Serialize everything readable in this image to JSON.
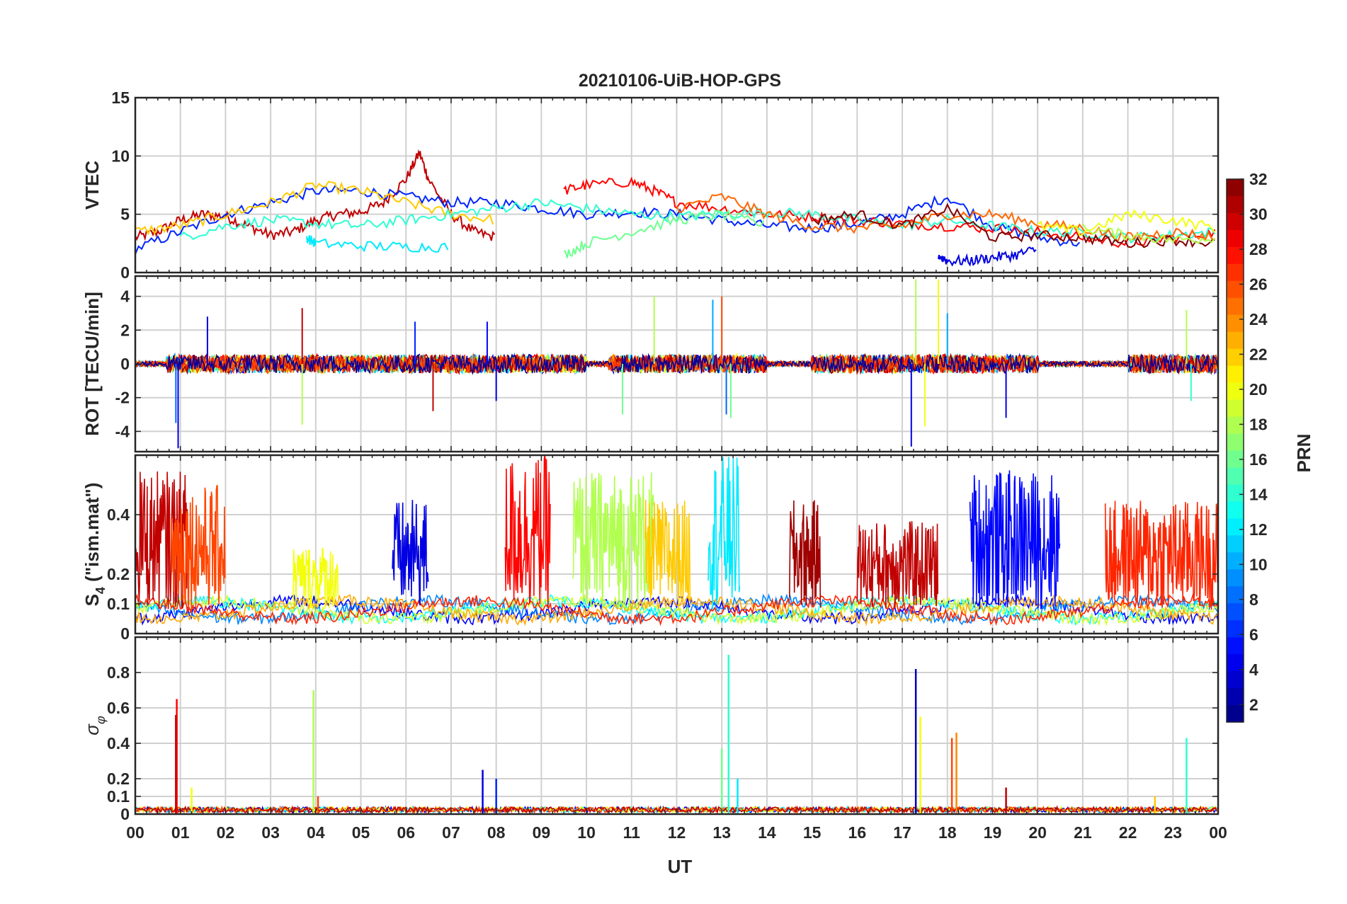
{
  "chart_data": {
    "type": "line",
    "title": "20210106-UiB-HOP-GPS",
    "xlabel": "UT",
    "x_ticks": [
      "00",
      "01",
      "02",
      "03",
      "04",
      "05",
      "06",
      "07",
      "08",
      "09",
      "10",
      "11",
      "12",
      "13",
      "14",
      "15",
      "16",
      "17",
      "18",
      "19",
      "20",
      "21",
      "22",
      "23",
      "00"
    ],
    "xlim": [
      0,
      24
    ],
    "grid": true,
    "colorbar": {
      "label": "PRN",
      "ticks": [
        "32",
        "30",
        "28",
        "26",
        "24",
        "22",
        "20",
        "18",
        "16",
        "14",
        "12",
        "10",
        "8",
        "6",
        "4",
        "2"
      ],
      "range": [
        1,
        32
      ],
      "colormap": "jet"
    },
    "panels": [
      {
        "ylabel": "VTEC",
        "ylim": [
          0,
          15
        ],
        "y_ticks": [
          "0",
          "5",
          "10",
          "15"
        ],
        "kind": "tec",
        "series": [
          {
            "prn": 30,
            "x": [
              0,
              0.5,
              1,
              1.5,
              2,
              2.5,
              3,
              3.5,
              4,
              4.5,
              5,
              5.5,
              6,
              6.3,
              6.5,
              7,
              7.5,
              8
            ],
            "y": [
              3,
              3.5,
              4.5,
              5,
              4.8,
              4,
              3.2,
              3.5,
              4.5,
              5,
              5.2,
              6,
              8,
              10.3,
              8,
              5,
              3.5,
              3
            ]
          },
          {
            "prn": 6,
            "x": [
              0,
              1,
              2,
              3,
              4,
              5,
              6,
              7,
              8,
              9,
              10,
              11,
              12,
              13,
              14,
              15,
              16,
              17,
              18,
              19,
              20,
              21
            ],
            "y": [
              2,
              3.5,
              5,
              6,
              7,
              7,
              6.5,
              6,
              6,
              5.5,
              5,
              5.2,
              5,
              4.5,
              4,
              3.8,
              4.2,
              5,
              6.5,
              4,
              3,
              2.5
            ]
          },
          {
            "prn": 22,
            "x": [
              0,
              1,
              2,
              3,
              4,
              5,
              6,
              7,
              8
            ],
            "y": [
              3.5,
              4,
              5,
              6,
              7.5,
              7,
              6,
              5,
              4.5
            ]
          },
          {
            "prn": 28,
            "x": [
              9.5,
              10,
              11,
              11.5,
              12,
              13,
              14,
              15,
              16,
              17,
              18,
              19,
              20,
              21,
              22,
              23,
              24
            ],
            "y": [
              7,
              7.5,
              7.8,
              7,
              6,
              5.5,
              5,
              4.8,
              4.5,
              4.2,
              4,
              3.8,
              3.5,
              3,
              2.5,
              3,
              3.5
            ]
          },
          {
            "prn": 14,
            "x": [
              1,
              2,
              3,
              4,
              5,
              6,
              7,
              8,
              9,
              10,
              11,
              12,
              13,
              14,
              15,
              16,
              17,
              18,
              19,
              20,
              21,
              22,
              23,
              24
            ],
            "y": [
              3,
              4,
              4.5,
              4.2,
              4,
              4.5,
              5,
              5.5,
              6,
              5.5,
              5,
              4.8,
              5,
              5.2,
              5,
              4.5,
              4,
              4.5,
              4,
              3.5,
              3.5,
              3,
              3.2,
              3.5
            ]
          },
          {
            "prn": 12,
            "x": [
              3.8,
              4,
              5,
              6,
              7
            ],
            "y": [
              3,
              2.5,
              2.3,
              2.2,
              2.2
            ]
          },
          {
            "prn": 16,
            "x": [
              9.5,
              10,
              11,
              12,
              13,
              14
            ],
            "y": [
              1.5,
              2.5,
              3.5,
              4.5,
              5,
              4
            ]
          },
          {
            "prn": 4,
            "x": [
              17.8,
              18,
              18.5,
              19,
              19.5,
              20
            ],
            "y": [
              1.5,
              1,
              1,
              1.3,
              1.5,
              2
            ]
          },
          {
            "prn": 25,
            "x": [
              12,
              13,
              14,
              15,
              16,
              17,
              18,
              19,
              20,
              21,
              22,
              23,
              24
            ],
            "y": [
              5.5,
              6.5,
              5,
              4,
              3.8,
              4,
              5,
              5,
              4.2,
              3.8,
              3,
              3.5,
              3
            ]
          },
          {
            "prn": 32,
            "x": [
              15,
              16,
              17,
              18,
              19,
              20,
              21,
              22,
              23,
              24
            ],
            "y": [
              4.5,
              5,
              4,
              5.5,
              3,
              3.2,
              3,
              2.5,
              2.8,
              2.5
            ]
          },
          {
            "prn": 20,
            "x": [
              20,
              21,
              22,
              23,
              24
            ],
            "y": [
              4,
              3.5,
              5,
              4.5,
              3.8
            ]
          },
          {
            "prn": 18,
            "x": [
              21,
              22,
              23,
              24
            ],
            "y": [
              3.8,
              3.2,
              2.8,
              3
            ]
          }
        ]
      },
      {
        "ylabel": "ROT [TECU/min]",
        "ylim": [
          -5.2,
          5.2
        ],
        "y_ticks": [
          "-4",
          "-2",
          "0",
          "2",
          "4"
        ],
        "kind": "rot",
        "spikes": [
          {
            "x": 0.9,
            "y": -3.5,
            "prn": 8
          },
          {
            "x": 0.95,
            "y": -5,
            "prn": 4
          },
          {
            "x": 1.6,
            "y": 2.8,
            "prn": 4
          },
          {
            "x": 3.7,
            "y": 3.3,
            "prn": 30
          },
          {
            "x": 3.7,
            "y": -3.6,
            "prn": 18
          },
          {
            "x": 6.2,
            "y": 2.5,
            "prn": 6
          },
          {
            "x": 6.6,
            "y": -2.8,
            "prn": 30
          },
          {
            "x": 7.8,
            "y": 2.5,
            "prn": 5
          },
          {
            "x": 8.0,
            "y": -2.2,
            "prn": 4
          },
          {
            "x": 10.8,
            "y": -3,
            "prn": 16
          },
          {
            "x": 11.5,
            "y": 4,
            "prn": 18
          },
          {
            "x": 12.8,
            "y": 3.8,
            "prn": 10
          },
          {
            "x": 13.0,
            "y": 4,
            "prn": 26
          },
          {
            "x": 13.1,
            "y": -3,
            "prn": 8
          },
          {
            "x": 13.2,
            "y": -3.2,
            "prn": 16
          },
          {
            "x": 17.2,
            "y": -4.9,
            "prn": 4
          },
          {
            "x": 17.3,
            "y": 5,
            "prn": 18
          },
          {
            "x": 17.5,
            "y": -3.7,
            "prn": 20
          },
          {
            "x": 17.8,
            "y": 5,
            "prn": 20
          },
          {
            "x": 18.0,
            "y": 3,
            "prn": 10
          },
          {
            "x": 19.3,
            "y": -3.2,
            "prn": 4
          },
          {
            "x": 23.3,
            "y": 3.2,
            "prn": 18
          },
          {
            "x": 23.4,
            "y": -2.2,
            "prn": 14
          }
        ]
      },
      {
        "ylabel": "S4 (\"ism.mat\")",
        "ylabel_main": "S",
        "ylabel_sub": "4",
        "ylabel_rest": " (\"ism.mat\")",
        "ylim": [
          0,
          0.6
        ],
        "y_ticks": [
          "0",
          "0.1",
          "0.2",
          "0.4"
        ],
        "kind": "s4",
        "bursts": [
          {
            "x0": 0,
            "x1": 1.2,
            "peak": 0.55,
            "prn": 30
          },
          {
            "x0": 0.8,
            "x1": 2,
            "peak": 0.5,
            "prn": 26
          },
          {
            "x0": 3.5,
            "x1": 4.5,
            "peak": 0.3,
            "prn": 20
          },
          {
            "x0": 5.7,
            "x1": 6.5,
            "peak": 0.45,
            "prn": 4
          },
          {
            "x0": 8.2,
            "x1": 9.2,
            "peak": 0.6,
            "prn": 28
          },
          {
            "x0": 9.7,
            "x1": 11.5,
            "peak": 0.55,
            "prn": 18
          },
          {
            "x0": 11.3,
            "x1": 12.3,
            "peak": 0.45,
            "prn": 22
          },
          {
            "x0": 12.7,
            "x1": 13.4,
            "peak": 0.6,
            "prn": 12
          },
          {
            "x0": 14.5,
            "x1": 15.2,
            "peak": 0.45,
            "prn": 31
          },
          {
            "x0": 16,
            "x1": 17.8,
            "peak": 0.38,
            "prn": 30
          },
          {
            "x0": 18.5,
            "x1": 20.5,
            "peak": 0.55,
            "prn": 5
          },
          {
            "x0": 21.5,
            "x1": 24,
            "peak": 0.45,
            "prn": 27
          }
        ]
      },
      {
        "ylabel": "σ φ",
        "ylabel_main": "σ",
        "ylabel_sub": "φ",
        "ylim": [
          0,
          1
        ],
        "y_ticks": [
          "0",
          "0.1",
          "0.2",
          "0.4",
          "0.6",
          "0.8"
        ],
        "kind": "sigma",
        "spikes": [
          {
            "x": 0.92,
            "y": 0.65,
            "prn": 28
          },
          {
            "x": 0.9,
            "y": 0.56,
            "prn": 30
          },
          {
            "x": 1.25,
            "y": 0.15,
            "prn": 20
          },
          {
            "x": 3.95,
            "y": 0.7,
            "prn": 18
          },
          {
            "x": 4.05,
            "y": 0.1,
            "prn": 26
          },
          {
            "x": 7.7,
            "y": 0.25,
            "prn": 4
          },
          {
            "x": 8.0,
            "y": 0.2,
            "prn": 6
          },
          {
            "x": 13.0,
            "y": 0.37,
            "prn": 16
          },
          {
            "x": 13.15,
            "y": 0.9,
            "prn": 14
          },
          {
            "x": 13.35,
            "y": 0.2,
            "prn": 12
          },
          {
            "x": 17.3,
            "y": 0.82,
            "prn": 3
          },
          {
            "x": 17.4,
            "y": 0.55,
            "prn": 20
          },
          {
            "x": 18.1,
            "y": 0.43,
            "prn": 26
          },
          {
            "x": 18.2,
            "y": 0.46,
            "prn": 24
          },
          {
            "x": 19.3,
            "y": 0.15,
            "prn": 30
          },
          {
            "x": 22.6,
            "y": 0.1,
            "prn": 22
          },
          {
            "x": 23.3,
            "y": 0.43,
            "prn": 14
          }
        ]
      }
    ]
  }
}
